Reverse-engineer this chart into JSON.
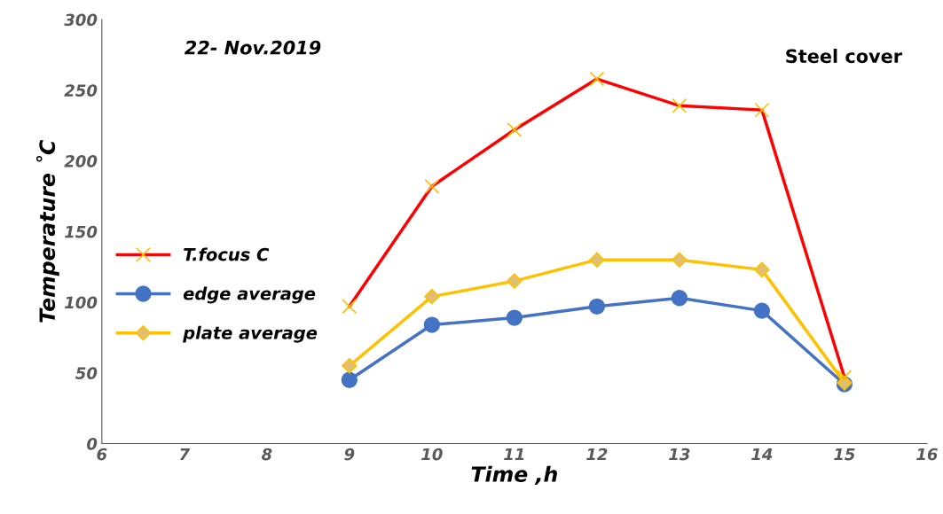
{
  "chart_data": {
    "type": "line",
    "xlabel": "Time ,h",
    "ylabel": "Temperature ˚C",
    "annotations": [
      "22- Nov.2019",
      "Steel cover"
    ],
    "x": [
      9,
      10,
      11,
      12,
      13,
      14,
      15
    ],
    "series": [
      {
        "name": "T.focus C",
        "color": "#ff0000",
        "marker": "cross",
        "values": [
          97,
          182,
          222,
          258,
          239,
          236,
          47
        ]
      },
      {
        "name": "edge average",
        "color": "#4472c4",
        "marker": "circle",
        "values": [
          45,
          84,
          89,
          97,
          103,
          94,
          42
        ]
      },
      {
        "name": "plate average",
        "color": "#ffc000",
        "marker": "diamond",
        "values": [
          55,
          104,
          115,
          130,
          130,
          123,
          43
        ]
      }
    ],
    "xlim": [
      6,
      16
    ],
    "xticks": [
      6,
      7,
      8,
      9,
      10,
      11,
      12,
      13,
      14,
      15,
      16
    ],
    "ylim": [
      0,
      300
    ],
    "yticks": [
      0,
      50,
      100,
      150,
      200,
      250,
      300
    ],
    "grid": false,
    "legend": "center left",
    "line_style": "solid"
  }
}
